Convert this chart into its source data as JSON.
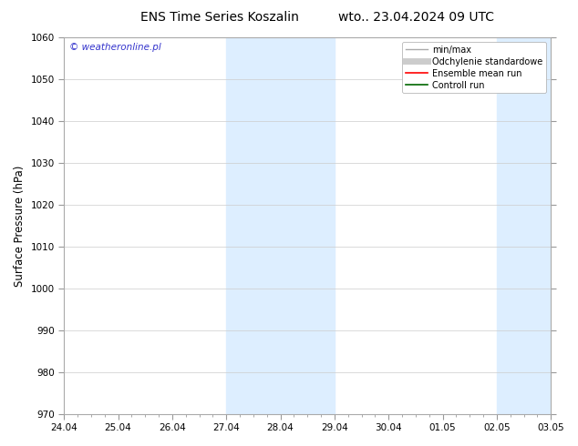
{
  "title_left": "ENS Time Series Koszalin",
  "title_right": "wto.. 23.04.2024 09 UTC",
  "ylabel": "Surface Pressure (hPa)",
  "ylim": [
    970,
    1060
  ],
  "yticks": [
    970,
    980,
    990,
    1000,
    1010,
    1020,
    1030,
    1040,
    1050,
    1060
  ],
  "x_labels": [
    "24.04",
    "25.04",
    "26.04",
    "27.04",
    "28.04",
    "29.04",
    "30.04",
    "01.05",
    "02.05",
    "03.05"
  ],
  "shaded_regions": [
    {
      "xmin": 3.0,
      "xmax": 3.5,
      "color": "#ddeeff"
    },
    {
      "xmin": 3.5,
      "xmax": 5.0,
      "color": "#ddeeff"
    },
    {
      "xmin": 8.0,
      "xmax": 9.0,
      "color": "#ddeeff"
    }
  ],
  "watermark_text": "© weatheronline.pl",
  "watermark_color": "#3333cc",
  "legend_entries": [
    {
      "label": "min/max",
      "color": "#aaaaaa",
      "lw": 1.0
    },
    {
      "label": "Odchylenie standardowe",
      "color": "#cccccc",
      "lw": 5
    },
    {
      "label": "Ensemble mean run",
      "color": "#ff0000",
      "lw": 1.2
    },
    {
      "label": "Controll run",
      "color": "#006600",
      "lw": 1.2
    }
  ],
  "background_color": "#ffffff",
  "grid_color": "#cccccc",
  "title_fontsize": 10,
  "tick_fontsize": 7.5,
  "ylabel_fontsize": 8.5
}
